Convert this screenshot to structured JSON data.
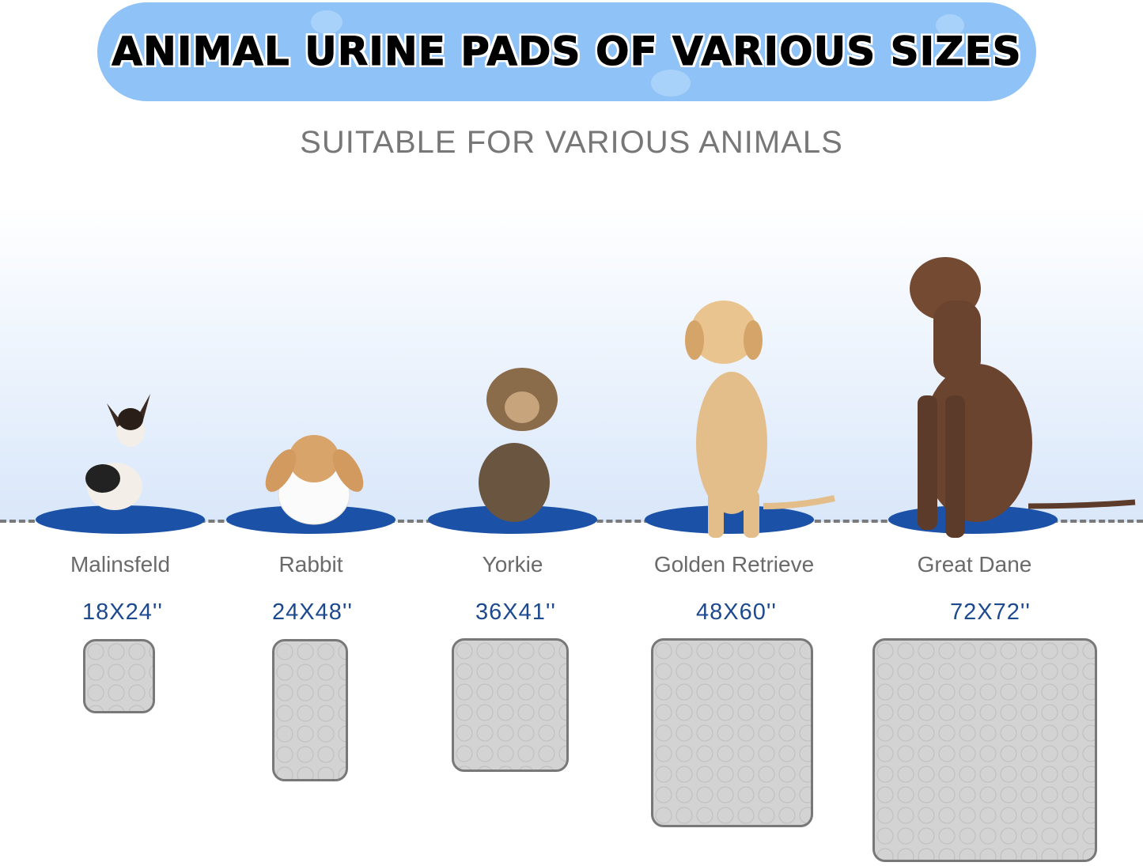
{
  "header": {
    "title": "ANIMAL URINE PADS OF VARIOUS SIZES",
    "subtitle": "SUITABLE FOR VARIOUS ANIMALS"
  },
  "colors": {
    "pill": "#8fc2f6",
    "mat": "#1b52a8",
    "size_text": "#1d4a8f",
    "pad": "#d3d3d3"
  },
  "animals": [
    {
      "name": "Malinsfeld",
      "size": "18X24''"
    },
    {
      "name": "Rabbit",
      "size": "24X48''"
    },
    {
      "name": "Yorkie",
      "size": "36X41''"
    },
    {
      "name": "Golden Retrieve",
      "size": "48X60''"
    },
    {
      "name": "Great Dane",
      "size": "72X72''"
    }
  ]
}
